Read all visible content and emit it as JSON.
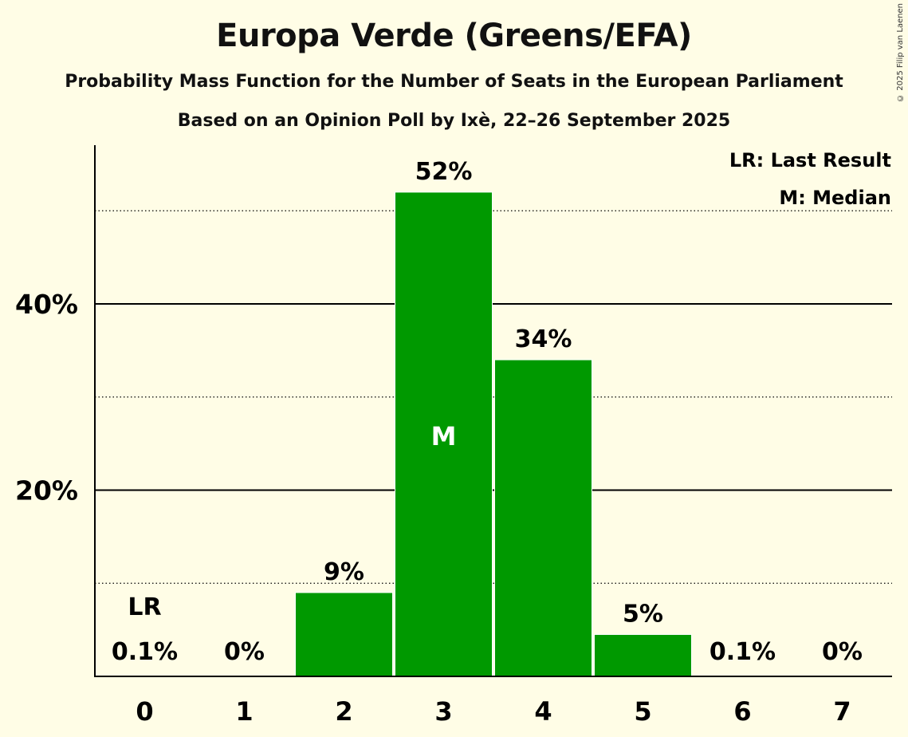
{
  "header": {
    "title": "Europa Verde (Greens/EFA)",
    "subtitle": "Probability Mass Function for the Number of Seats in the European Parliament",
    "subtitle2": "Based on an Opinion Poll by Ixè, 22–26 September 2025",
    "copyright": "© 2025 Filip van Laenen"
  },
  "legend": {
    "lr": "LR: Last Result",
    "median": "M: Median"
  },
  "colors": {
    "bar": "#009900",
    "background": "#fffde6"
  },
  "chart_data": {
    "type": "bar",
    "title": "Europa Verde (Greens/EFA)",
    "xlabel": "",
    "ylabel": "",
    "categories": [
      "0",
      "1",
      "2",
      "3",
      "4",
      "5",
      "6",
      "7"
    ],
    "values": [
      0.1,
      0,
      9,
      52,
      34,
      4.5,
      0.1,
      0
    ],
    "labels": [
      "0.1%",
      "0%",
      "9%",
      "52%",
      "34%",
      "5%",
      "0.1%",
      "0%"
    ],
    "ylim": [
      0,
      57
    ],
    "yticks": [
      {
        "value": 20,
        "label": "20%"
      },
      {
        "value": 40,
        "label": "40%"
      }
    ],
    "dotted_gridlines": [
      10,
      30,
      50
    ],
    "last_result_index": 0,
    "last_result_label": "LR",
    "median_index": 3,
    "median_label": "M"
  }
}
